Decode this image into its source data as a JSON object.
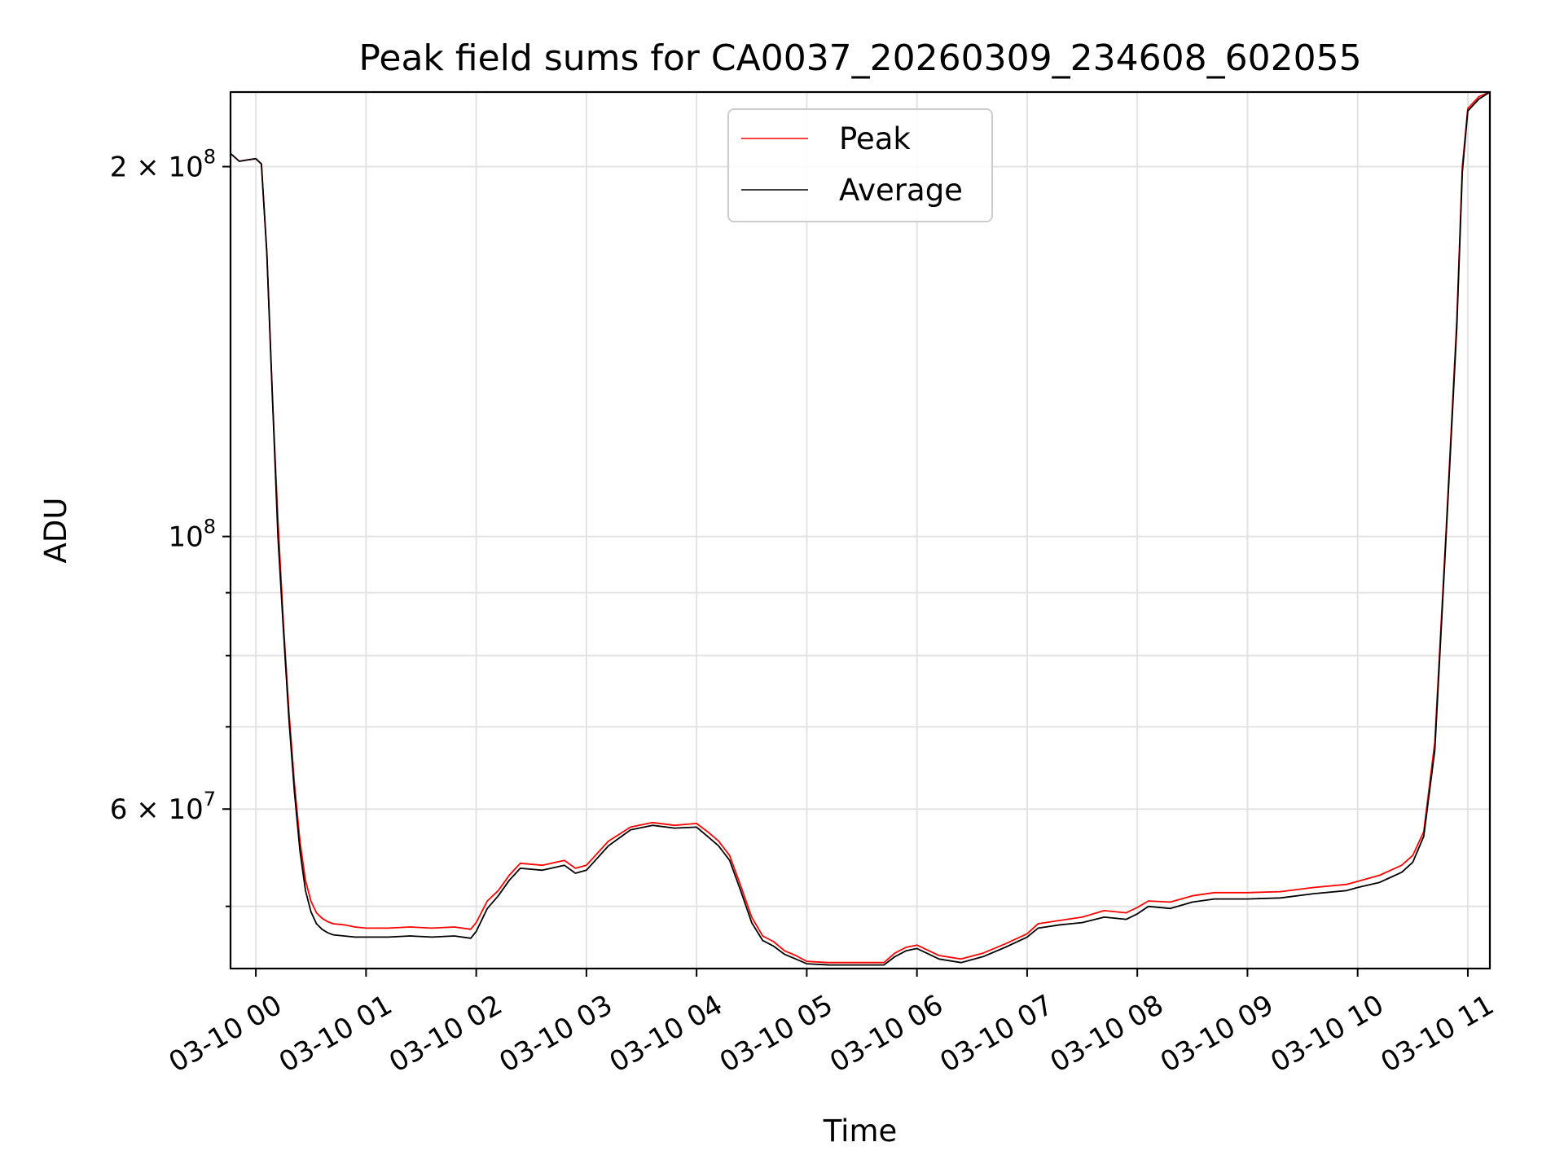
{
  "chart_data": {
    "type": "line",
    "title": "Peak field sums for CA0037_20260309_234608_602055",
    "xlabel": "Time",
    "ylabel": "ADU",
    "yscale": "log",
    "xlim_hours": [
      -0.23,
      11.2
    ],
    "ylim": [
      44500000,
      230000000
    ],
    "x_ticks": [
      {
        "value": 0,
        "label": "03-10 00"
      },
      {
        "value": 1,
        "label": "03-10 01"
      },
      {
        "value": 2,
        "label": "03-10 02"
      },
      {
        "value": 3,
        "label": "03-10 03"
      },
      {
        "value": 4,
        "label": "03-10 04"
      },
      {
        "value": 5,
        "label": "03-10 05"
      },
      {
        "value": 6,
        "label": "03-10 06"
      },
      {
        "value": 7,
        "label": "03-10 07"
      },
      {
        "value": 8,
        "label": "03-10 08"
      },
      {
        "value": 9,
        "label": "03-10 09"
      },
      {
        "value": 10,
        "label": "03-10 10"
      },
      {
        "value": 11,
        "label": "03-10 11"
      }
    ],
    "y_ticks": [
      {
        "value": 200000000,
        "base": "2 × 10",
        "exp": "8"
      },
      {
        "value": 100000000,
        "base": "10",
        "exp": "8"
      },
      {
        "value": 60000000,
        "base": "6 × 10",
        "exp": "7"
      }
    ],
    "y_minor_ticks": [
      50000000,
      70000000,
      80000000,
      90000000
    ],
    "grid": true,
    "legend_position": "top-center",
    "series": [
      {
        "name": "Peak",
        "color": "#ff0000",
        "x": [
          -0.23,
          -0.15,
          -0.08,
          0.0,
          0.05,
          0.1,
          0.15,
          0.2,
          0.25,
          0.3,
          0.35,
          0.4,
          0.45,
          0.5,
          0.55,
          0.6,
          0.65,
          0.7,
          0.8,
          0.9,
          1.0,
          1.2,
          1.4,
          1.6,
          1.8,
          1.95,
          2.0,
          2.1,
          2.2,
          2.3,
          2.4,
          2.6,
          2.8,
          2.9,
          3.0,
          3.2,
          3.4,
          3.6,
          3.8,
          4.0,
          4.1,
          4.2,
          4.3,
          4.4,
          4.5,
          4.6,
          4.7,
          4.8,
          4.9,
          5.0,
          5.2,
          5.4,
          5.6,
          5.7,
          5.8,
          5.9,
          6.0,
          6.2,
          6.4,
          6.6,
          6.8,
          7.0,
          7.1,
          7.3,
          7.5,
          7.7,
          7.9,
          8.0,
          8.1,
          8.3,
          8.5,
          8.7,
          9.0,
          9.3,
          9.6,
          9.9,
          10.0,
          10.2,
          10.3,
          10.4,
          10.5,
          10.6,
          10.7,
          10.8,
          10.9,
          10.95,
          11.0,
          11.1,
          11.2
        ],
        "y": [
          205000000,
          202000000,
          202500000,
          203000000,
          201000000,
          170000000,
          130000000,
          103000000,
          85000000,
          72000000,
          63000000,
          56500000,
          52500000,
          50500000,
          49400000,
          48900000,
          48600000,
          48400000,
          48300000,
          48100000,
          48000000,
          48000000,
          48100000,
          48000000,
          48100000,
          47900000,
          48500000,
          50500000,
          51500000,
          53000000,
          54200000,
          54000000,
          54500000,
          53700000,
          54000000,
          56500000,
          58000000,
          58500000,
          58200000,
          58400000,
          57500000,
          56500000,
          55000000,
          52000000,
          49000000,
          47300000,
          46800000,
          46000000,
          45600000,
          45100000,
          45000000,
          45000000,
          45000000,
          45000000,
          45800000,
          46300000,
          46500000,
          45600000,
          45300000,
          45800000,
          46600000,
          47500000,
          48400000,
          48700000,
          49000000,
          49600000,
          49400000,
          49900000,
          50500000,
          50400000,
          51000000,
          51300000,
          51300000,
          51400000,
          51800000,
          52100000,
          52400000,
          53000000,
          53500000,
          54000000,
          55000000,
          57500000,
          68000000,
          100000000,
          150000000,
          200000000,
          223000000,
          228000000,
          230000000
        ]
      },
      {
        "name": "Average",
        "color": "#000000",
        "x": [
          -0.23,
          -0.15,
          -0.08,
          0.0,
          0.05,
          0.1,
          0.15,
          0.2,
          0.25,
          0.3,
          0.35,
          0.4,
          0.45,
          0.5,
          0.55,
          0.6,
          0.65,
          0.7,
          0.8,
          0.9,
          1.0,
          1.2,
          1.4,
          1.6,
          1.8,
          1.95,
          2.0,
          2.1,
          2.2,
          2.3,
          2.4,
          2.6,
          2.8,
          2.9,
          3.0,
          3.2,
          3.4,
          3.6,
          3.8,
          4.0,
          4.1,
          4.2,
          4.3,
          4.4,
          4.5,
          4.6,
          4.7,
          4.8,
          4.9,
          5.0,
          5.2,
          5.4,
          5.6,
          5.7,
          5.8,
          5.9,
          6.0,
          6.2,
          6.4,
          6.6,
          6.8,
          7.0,
          7.1,
          7.3,
          7.5,
          7.7,
          7.9,
          8.0,
          8.1,
          8.3,
          8.5,
          8.7,
          9.0,
          9.3,
          9.6,
          9.9,
          10.0,
          10.2,
          10.3,
          10.4,
          10.5,
          10.6,
          10.7,
          10.8,
          10.9,
          10.95,
          11.0,
          11.1,
          11.2
        ],
        "y": [
          205000000,
          202000000,
          202500000,
          203000000,
          201000000,
          170000000,
          130000000,
          100000000,
          84000000,
          71000000,
          62000000,
          55500000,
          51500000,
          49500000,
          48400000,
          47900000,
          47600000,
          47400000,
          47300000,
          47200000,
          47200000,
          47200000,
          47300000,
          47200000,
          47300000,
          47100000,
          47700000,
          49800000,
          51000000,
          52500000,
          53700000,
          53500000,
          54000000,
          53200000,
          53500000,
          56000000,
          57700000,
          58200000,
          57900000,
          58000000,
          57000000,
          56000000,
          54500000,
          51500000,
          48500000,
          46900000,
          46400000,
          45700000,
          45300000,
          44900000,
          44800000,
          44800000,
          44800000,
          44800000,
          45500000,
          46000000,
          46200000,
          45300000,
          45000000,
          45500000,
          46300000,
          47200000,
          48000000,
          48300000,
          48500000,
          49000000,
          48800000,
          49300000,
          50000000,
          49800000,
          50400000,
          50700000,
          50700000,
          50800000,
          51200000,
          51500000,
          51800000,
          52300000,
          52800000,
          53300000,
          54300000,
          57000000,
          67000000,
          99000000,
          148000000,
          198000000,
          222000000,
          227000000,
          230000000
        ]
      }
    ]
  }
}
